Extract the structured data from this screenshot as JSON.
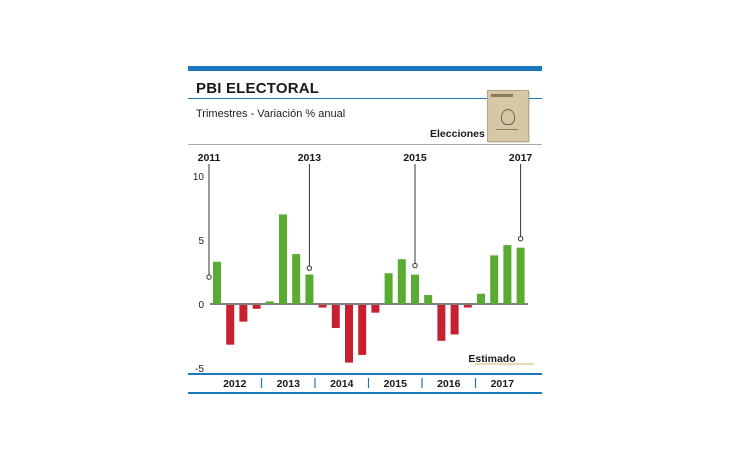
{
  "header": {
    "title": "PBI ELECTORAL",
    "subtitle": "Trimestres - Variación % anual",
    "elections_label": "Elecciones",
    "estimated_label": "Estimado"
  },
  "colors": {
    "positive": "#5aab32",
    "negative": "#c8202f",
    "accent": "#1b78bd",
    "estimate": "#e8d9b0"
  },
  "chart_data": {
    "type": "bar",
    "title": "PBI ELECTORAL",
    "subtitle": "Trimestres - Variación % anual",
    "ylim": [
      -5,
      10
    ],
    "yticks": [
      10,
      5,
      0,
      -5
    ],
    "years": [
      "2012",
      "2013",
      "2014",
      "2015",
      "2016",
      "2017"
    ],
    "values": [
      3.3,
      -3.1,
      -1.3,
      -0.3,
      0.2,
      7.0,
      3.9,
      2.3,
      -0.2,
      -1.8,
      -4.5,
      -3.9,
      -0.6,
      2.4,
      3.5,
      2.3,
      0.7,
      -2.8,
      -2.3,
      -0.2,
      0.8,
      3.8,
      4.6,
      4.4
    ],
    "elections": [
      {
        "label": "2011",
        "bar_index": 0,
        "value": 2.1
      },
      {
        "label": "2013",
        "bar_index": 7,
        "value": 2.8
      },
      {
        "label": "2015",
        "bar_index": 15,
        "value": 3.0
      },
      {
        "label": "2017",
        "bar_index": 23,
        "value": 5.1
      }
    ],
    "estimated_from_index": 20
  }
}
